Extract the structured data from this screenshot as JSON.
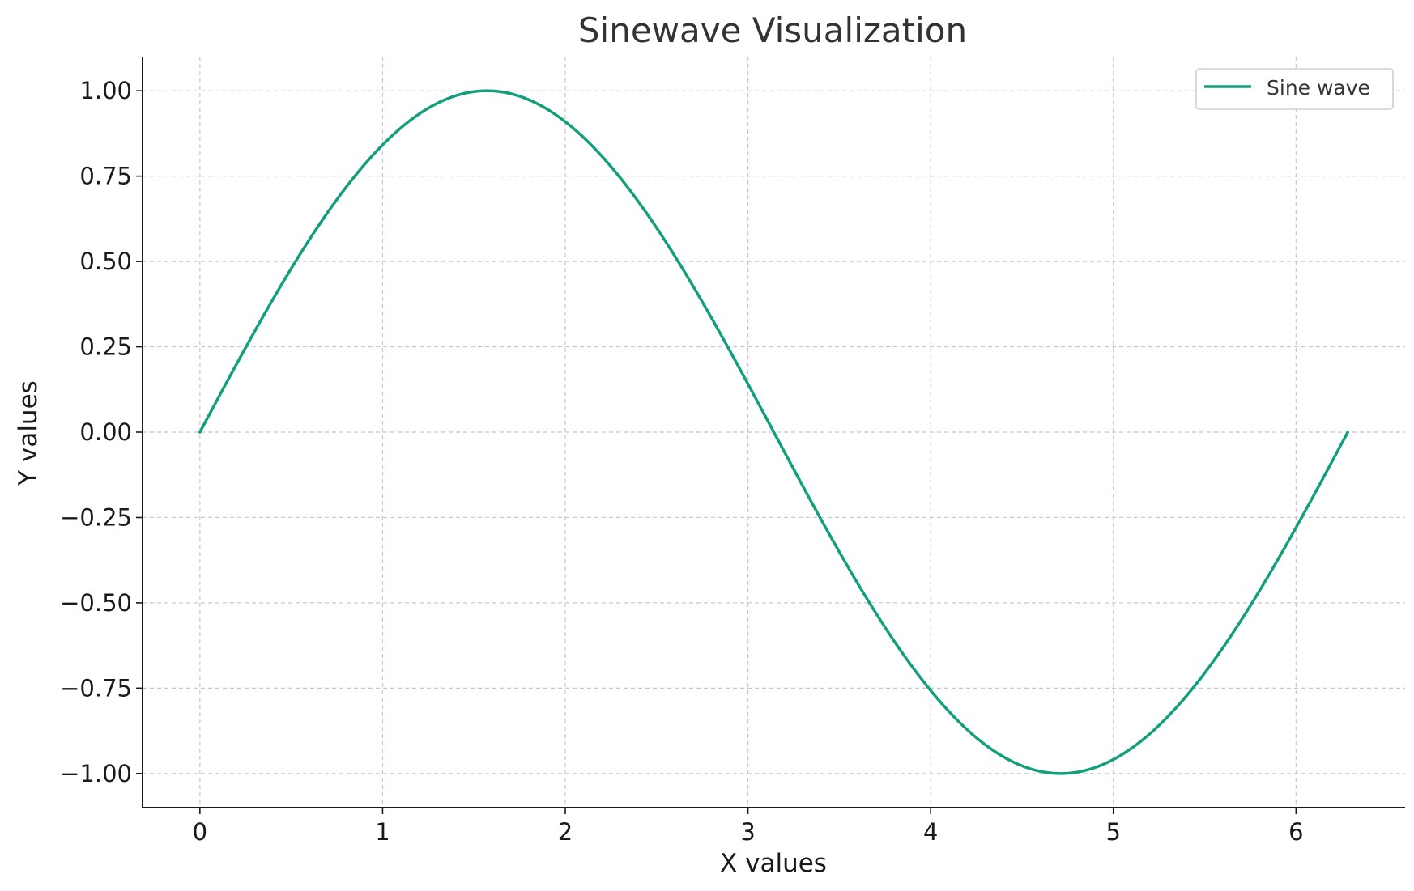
{
  "chart_data": {
    "type": "line",
    "title": "Sinewave Visualization",
    "xlabel": "X values",
    "ylabel": "Y values",
    "xlim": [
      -0.314,
      6.597
    ],
    "ylim": [
      -1.1,
      1.1
    ],
    "xticks": [
      0,
      1,
      2,
      3,
      4,
      5,
      6
    ],
    "xtick_labels": [
      "0",
      "1",
      "2",
      "3",
      "4",
      "5",
      "6"
    ],
    "yticks": [
      1.0,
      0.75,
      0.5,
      0.25,
      0.0,
      -0.25,
      -0.5,
      -0.75,
      -1.0
    ],
    "ytick_labels": [
      "1.00",
      "0.75",
      "0.50",
      "0.25",
      "0.00",
      "−0.25",
      "−0.50",
      "−0.75",
      "−1.00"
    ],
    "grid": true,
    "legend": {
      "position": "top-right",
      "entries": [
        "Sine wave"
      ]
    },
    "series": [
      {
        "name": "Sine wave",
        "color": "#139f7c",
        "function": "sin(x)",
        "x_range": [
          0,
          6.2832
        ],
        "x": [
          0,
          0.2618,
          0.5236,
          0.7854,
          1.0472,
          1.309,
          1.5708,
          1.8326,
          2.0944,
          2.3562,
          2.618,
          2.8798,
          3.1416,
          3.4034,
          3.6652,
          3.927,
          4.1888,
          4.4506,
          4.7124,
          4.9742,
          5.236,
          5.4978,
          5.7596,
          6.0214,
          6.2832
        ],
        "y": [
          0,
          0.2588,
          0.5,
          0.7071,
          0.866,
          0.9659,
          1.0,
          0.9659,
          0.866,
          0.7071,
          0.5,
          0.2588,
          0,
          -0.2588,
          -0.5,
          -0.7071,
          -0.866,
          -0.9659,
          -1.0,
          -0.9659,
          -0.866,
          -0.7071,
          -0.5,
          -0.2588,
          0
        ]
      }
    ]
  }
}
